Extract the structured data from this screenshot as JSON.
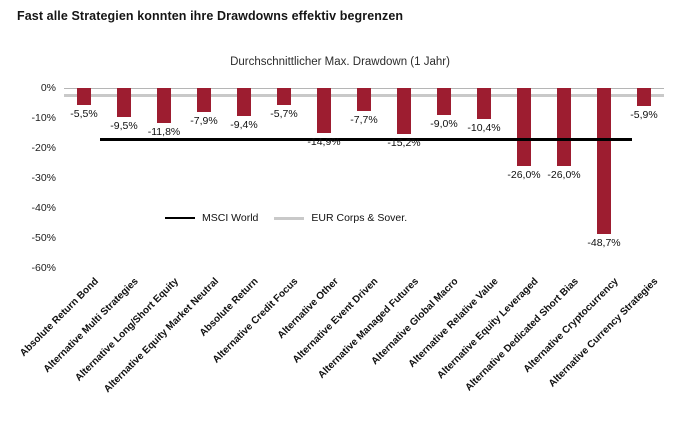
{
  "title": "Fast alle Strategien konnten ihre Drawdowns effektiv begrenzen",
  "chart_data": {
    "type": "bar",
    "title": "Durchschnittlicher Max. Drawdown (1 Jahr)",
    "xlabel": "",
    "ylabel": "",
    "ylim": [
      -60,
      0
    ],
    "yticks": [
      "0%",
      "-10%",
      "-20%",
      "-30%",
      "-40%",
      "-50%",
      "-60%"
    ],
    "grid": false,
    "bar_color": "#9d1d30",
    "categories": [
      "Absolute Return Bond",
      "Alternative Multi Strategies",
      "Alternative Long/Short Equity",
      "Alternative Equity Market Neutral",
      "Absolute Return",
      "Alternative Credit Focus",
      "Alternative Other",
      "Alternative Event Driven",
      "Alternative Managed Futures",
      "Alternative Global Macro",
      "Alternative Relative Value",
      "Alternative Equity Leveraged",
      "Alternative Dedicated Short Bias",
      "Alternative Cryptocurrency",
      "Alternative Currency Strategies"
    ],
    "values": [
      -5.5,
      -9.5,
      -11.8,
      -7.9,
      -9.4,
      -5.7,
      -14.9,
      -7.7,
      -15.2,
      -9.0,
      -10.4,
      -26.0,
      -26.0,
      -48.7,
      -5.9
    ],
    "labels": [
      "-5,5%",
      "-9,5%",
      "-11,8%",
      "-7,9%",
      "-9,4%",
      "-5,7%",
      "-14,9%",
      "-7,7%",
      "-15,2%",
      "-9,0%",
      "-10,4%",
      "-26,0%",
      "-26,0%",
      "-48,7%",
      "-5,9%"
    ],
    "reference_lines": [
      {
        "name": "MSCI World",
        "value": -16.8,
        "color": "#000000"
      },
      {
        "name": "EUR Corps & Sover.",
        "value": -2.0,
        "color": "#c9c9c9"
      }
    ],
    "legend": [
      {
        "label": "MSCI World",
        "color": "#000000"
      },
      {
        "label": "EUR Corps & Sover.",
        "color": "#c9c9c9"
      }
    ],
    "legend_position": "inside-left-middle"
  }
}
